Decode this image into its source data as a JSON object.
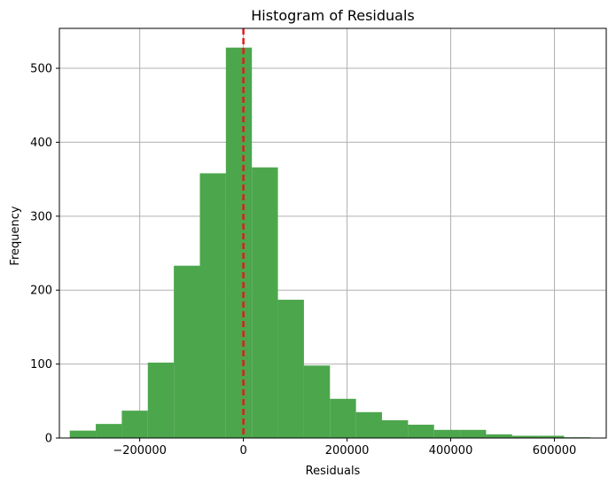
{
  "chart_data": {
    "type": "bar",
    "subtype": "histogram",
    "title": "Histogram of Residuals",
    "xlabel": "Residuals",
    "ylabel": "Frequency",
    "xlim": [
      -355000,
      700000
    ],
    "ylim": [
      0,
      554
    ],
    "xticks": [
      -200000,
      0,
      200000,
      400000,
      600000
    ],
    "xtick_labels": [
      "−200000",
      "0",
      "200000",
      "400000",
      "600000"
    ],
    "yticks": [
      0,
      100,
      200,
      300,
      400,
      500
    ],
    "ytick_labels": [
      "0",
      "100",
      "200",
      "300",
      "400",
      "500"
    ],
    "grid": true,
    "bar_color": "#4ca64c",
    "grid_color": "#b0b0b0",
    "bins": [
      {
        "start": -335000,
        "end": -284800,
        "value": 10
      },
      {
        "start": -284800,
        "end": -234600,
        "value": 19
      },
      {
        "start": -234600,
        "end": -184400,
        "value": 37
      },
      {
        "start": -184400,
        "end": -134200,
        "value": 102
      },
      {
        "start": -134200,
        "end": -84000,
        "value": 233
      },
      {
        "start": -84000,
        "end": -33800,
        "value": 358
      },
      {
        "start": -33800,
        "end": 16400,
        "value": 528
      },
      {
        "start": 16400,
        "end": 66600,
        "value": 366
      },
      {
        "start": 66600,
        "end": 116800,
        "value": 187
      },
      {
        "start": 116800,
        "end": 167000,
        "value": 98
      },
      {
        "start": 167000,
        "end": 217200,
        "value": 53
      },
      {
        "start": 217200,
        "end": 267400,
        "value": 35
      },
      {
        "start": 267400,
        "end": 317600,
        "value": 24
      },
      {
        "start": 317600,
        "end": 367800,
        "value": 18
      },
      {
        "start": 367800,
        "end": 418000,
        "value": 11
      },
      {
        "start": 418000,
        "end": 468200,
        "value": 11
      },
      {
        "start": 468200,
        "end": 518400,
        "value": 5
      },
      {
        "start": 518400,
        "end": 568600,
        "value": 3
      },
      {
        "start": 568600,
        "end": 618800,
        "value": 3
      },
      {
        "start": 618800,
        "end": 669000,
        "value": 1
      }
    ],
    "reference_line": {
      "x": 0,
      "color": "#e31a1c",
      "style": "dashed"
    }
  }
}
